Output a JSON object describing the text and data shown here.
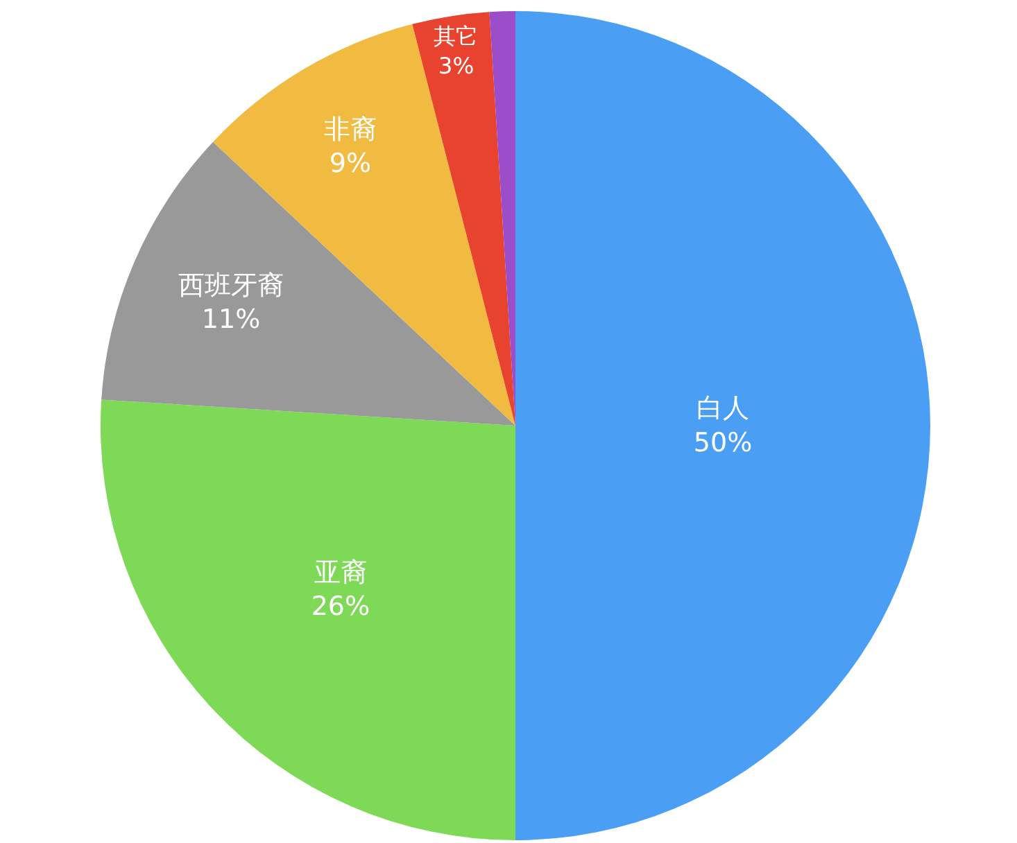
{
  "chart_data": {
    "type": "pie",
    "categories": [
      "白人",
      "亚裔",
      "西班牙裔",
      "非裔",
      "其它",
      null
    ],
    "values": [
      50,
      26,
      11,
      9,
      3,
      1
    ],
    "value_labels": [
      "50%",
      "26%",
      "11%",
      "9%",
      "3%",
      null
    ],
    "colors": [
      "#4a9ff5",
      "#7ed957",
      "#999999",
      "#f0bb40",
      "#e8432e",
      "#9b4dca"
    ],
    "legend": false
  }
}
